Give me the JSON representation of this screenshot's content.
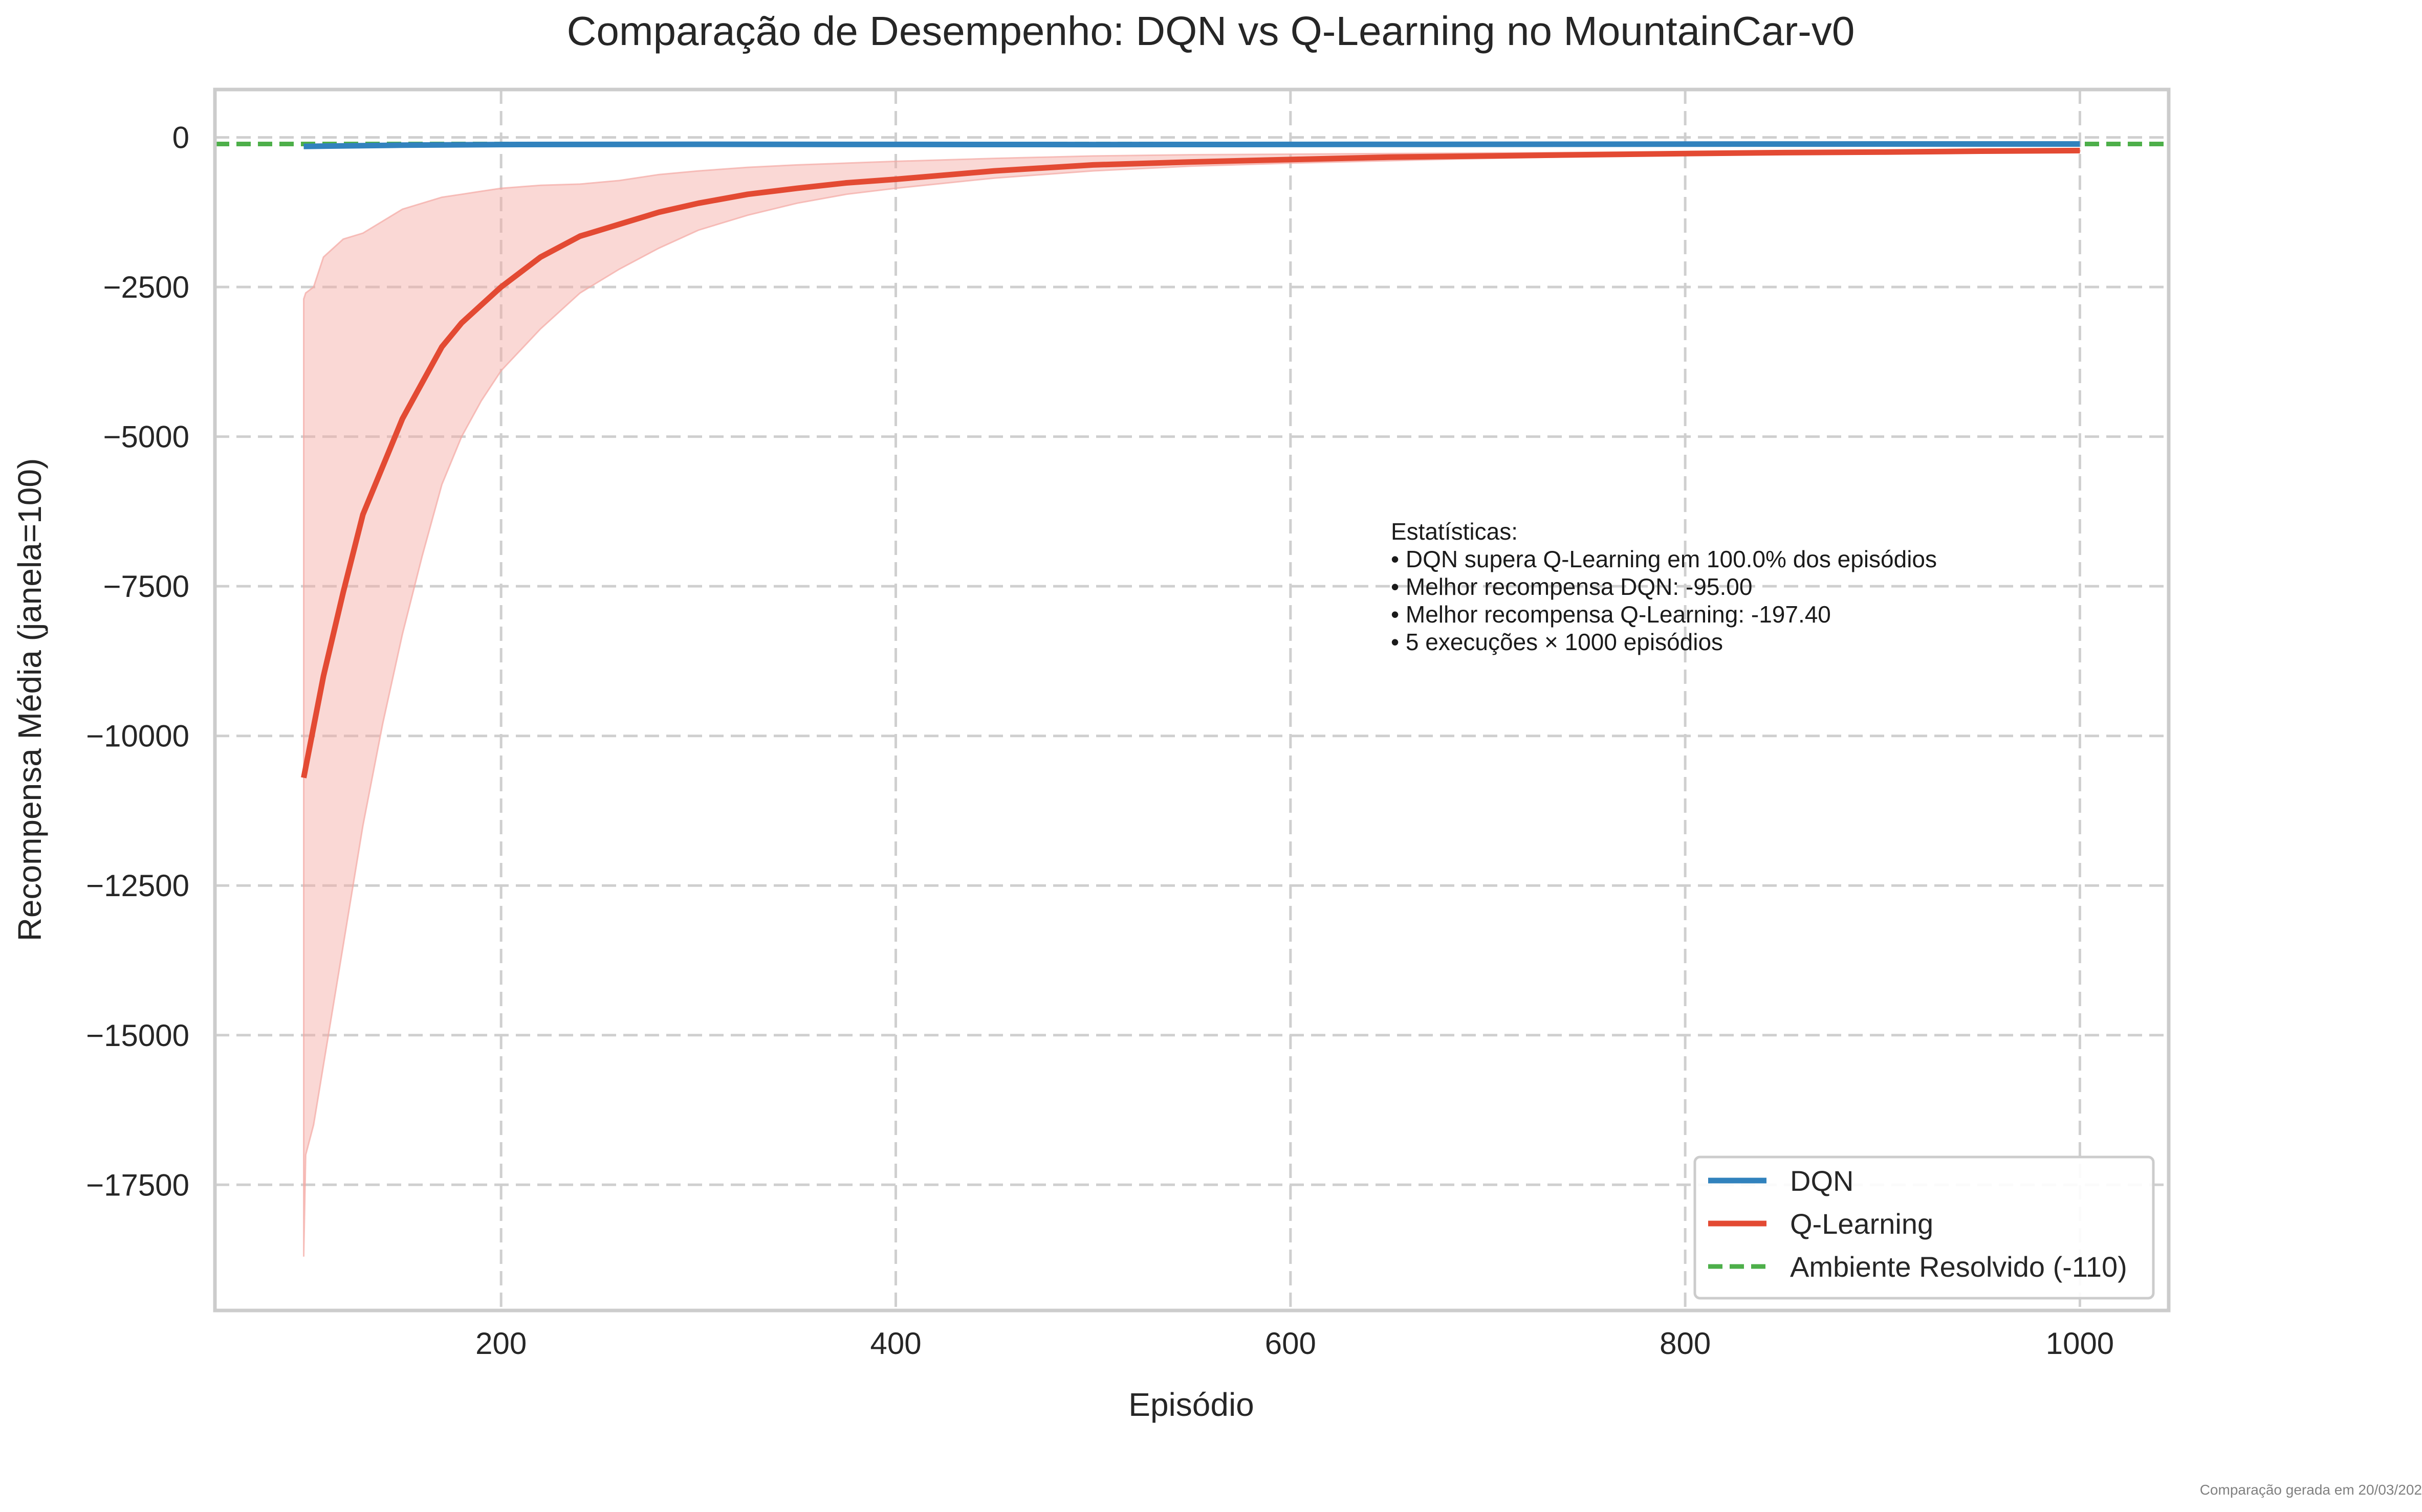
{
  "chart_data": {
    "type": "line",
    "title": "Comparação de Desempenho: DQN vs Q-Learning no MountainCar-v0",
    "xlabel": "Episódio",
    "ylabel": "Recompensa Média (janela=100)",
    "xlim": [
      55,
      1045
    ],
    "ylim": [
      -19600,
      800
    ],
    "xticks": [
      200,
      400,
      600,
      800,
      1000
    ],
    "xtick_labels": [
      "200",
      "400",
      "600",
      "800",
      "1000"
    ],
    "yticks": [
      0,
      -2500,
      -5000,
      -7500,
      -10000,
      -12500,
      -15000,
      -17500
    ],
    "ytick_labels": [
      "0",
      "−2500",
      "−5000",
      "−7500",
      "−10000",
      "−12500",
      "−15000",
      "−17500"
    ],
    "grid": true,
    "legend_position": "lower-right",
    "series": [
      {
        "name": "DQN",
        "color": "#3182bd",
        "x": [
          100,
          150,
          200,
          300,
          400,
          500,
          600,
          700,
          800,
          900,
          1000
        ],
        "y": [
          -150,
          -130,
          -120,
          -115,
          -118,
          -120,
          -118,
          -115,
          -112,
          -110,
          -110
        ]
      },
      {
        "name": "Q-Learning",
        "color": "#e34a33",
        "x": [
          100,
          110,
          120,
          130,
          140,
          150,
          160,
          170,
          180,
          190,
          200,
          220,
          240,
          260,
          280,
          300,
          325,
          350,
          375,
          400,
          450,
          500,
          550,
          600,
          650,
          700,
          750,
          800,
          850,
          900,
          950,
          1000
        ],
        "y": [
          -10700,
          -9000,
          -7600,
          -6300,
          -5500,
          -4700,
          -4100,
          -3500,
          -3100,
          -2800,
          -2500,
          -2000,
          -1650,
          -1450,
          -1250,
          -1100,
          -950,
          -850,
          -760,
          -700,
          -560,
          -460,
          -410,
          -370,
          -330,
          -310,
          -290,
          -270,
          -255,
          -245,
          -230,
          -220
        ]
      },
      {
        "name": "Ambiente Resolvido (-110)",
        "color": "#4daf4a",
        "style": "dashed",
        "y": -110
      }
    ],
    "band": {
      "series": "Q-Learning",
      "color": "#f4a8a2",
      "x": [
        100,
        101,
        105,
        110,
        120,
        130,
        140,
        150,
        160,
        170,
        180,
        190,
        200,
        220,
        240,
        260,
        280,
        300,
        325,
        350,
        375,
        400,
        450,
        500,
        550,
        600,
        650,
        700,
        750,
        800,
        900,
        1000
      ],
      "upper": [
        -2700,
        -2600,
        -2500,
        -2000,
        -1700,
        -1600,
        -1400,
        -1200,
        -1100,
        -1000,
        -950,
        -900,
        -850,
        -800,
        -780,
        -720,
        -620,
        -560,
        -500,
        -460,
        -430,
        -400,
        -350,
        -310,
        -290,
        -280,
        -270,
        -260,
        -250,
        -240,
        -230,
        -220
      ],
      "lower": [
        -18700,
        -17000,
        -16500,
        -15500,
        -13500,
        -11500,
        -9800,
        -8300,
        -7000,
        -5800,
        -5000,
        -4400,
        -3900,
        -3200,
        -2600,
        -2200,
        -1850,
        -1550,
        -1300,
        -1100,
        -950,
        -850,
        -680,
        -560,
        -480,
        -430,
        -390,
        -350,
        -320,
        -300,
        -270,
        -230
      ]
    },
    "annotations": [
      "Estatísticas:",
      "• DQN supera Q-Learning em 100.0% dos episódios",
      "• Melhor recompensa DQN: -95.00",
      "• Melhor recompensa Q-Learning: -197.40",
      "• 5 execuções × 1000 episódios"
    ]
  },
  "footer": {
    "text": "Comparação gerada em 20/03/202"
  }
}
